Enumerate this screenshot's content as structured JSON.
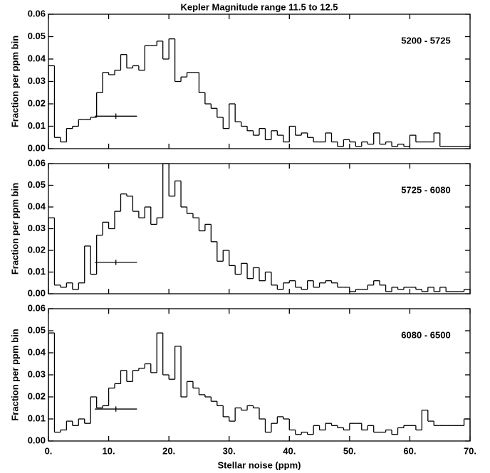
{
  "chart_data": [
    {
      "type": "histogram",
      "title": "Kepler Magnitude range 11.5 to 12.5",
      "ylabel": "Fraction per ppm bin",
      "annotation": "5200 - 5725",
      "color": "#000000",
      "bins": [
        0,
        1,
        2,
        3,
        4,
        5,
        6,
        7,
        8,
        9,
        10,
        11,
        12,
        13,
        14,
        15,
        16,
        17,
        18,
        19,
        20,
        21,
        22,
        23,
        24,
        25,
        26,
        27,
        28,
        29,
        30,
        31,
        32,
        33,
        34,
        35,
        36,
        37,
        38,
        39,
        40,
        41,
        42,
        43,
        44,
        45,
        46,
        47,
        48,
        49,
        50,
        51,
        52,
        53,
        54,
        55,
        56,
        57,
        58,
        59,
        60,
        61,
        62,
        63,
        64,
        65,
        66,
        67,
        68,
        69,
        70
      ],
      "values": [
        0.037,
        0.005,
        0.003,
        0.009,
        0.01,
        0.013,
        0.013,
        0.014,
        0.025,
        0.034,
        0.033,
        0.035,
        0.042,
        0.036,
        0.037,
        0.035,
        0.046,
        0.046,
        0.048,
        0.04,
        0.049,
        0.03,
        0.032,
        0.034,
        0.034,
        0.025,
        0.02,
        0.018,
        0.014,
        0.009,
        0.02,
        0.012,
        0.01,
        0.008,
        0.006,
        0.009,
        0.004,
        0.008,
        0.006,
        0.003,
        0.01,
        0.006,
        0.007,
        0.005,
        0.003,
        0.003,
        0.007,
        0.003,
        0.001,
        0.004,
        0.003,
        0.001,
        0.003,
        0.002,
        0.007,
        0.002,
        0.003,
        0.001,
        0.002,
        0.001,
        0.006,
        0.003,
        0.003,
        0.003,
        0.007,
        0.001,
        0.001,
        0.001,
        0.001,
        0.001
      ],
      "error_bar": {
        "x": 11.2,
        "y": 0.0145,
        "xerr": 3.5,
        "yerr": 0.0012
      },
      "xlim": [
        0,
        70
      ],
      "xticks": [
        0,
        10,
        20,
        30,
        40,
        50,
        60,
        70
      ],
      "ylim": [
        0,
        0.06
      ],
      "yticks": [
        {
          "value": 0,
          "label": "0.00"
        },
        {
          "value": 0.01,
          "label": "0.01"
        },
        {
          "value": 0.02,
          "label": "0.02"
        },
        {
          "value": 0.03,
          "label": "0.03"
        },
        {
          "value": 0.04,
          "label": "0.04"
        },
        {
          "value": 0.05,
          "label": "0.05"
        },
        {
          "value": 0.06,
          "label": "0.06"
        }
      ]
    },
    {
      "type": "histogram",
      "ylabel": "Fraction per ppm bin",
      "annotation": "5725 - 6080",
      "color": "#000000",
      "bins": [
        0,
        1,
        2,
        3,
        4,
        5,
        6,
        7,
        8,
        9,
        10,
        11,
        12,
        13,
        14,
        15,
        16,
        17,
        18,
        19,
        20,
        21,
        22,
        23,
        24,
        25,
        26,
        27,
        28,
        29,
        30,
        31,
        32,
        33,
        34,
        35,
        36,
        37,
        38,
        39,
        40,
        41,
        42,
        43,
        44,
        45,
        46,
        47,
        48,
        49,
        50,
        51,
        52,
        53,
        54,
        55,
        56,
        57,
        58,
        59,
        60,
        61,
        62,
        63,
        64,
        65,
        66,
        67,
        68,
        69,
        70
      ],
      "values": [
        0.035,
        0.004,
        0.003,
        0.005,
        0.002,
        0.005,
        0.022,
        0.009,
        0.027,
        0.033,
        0.03,
        0.038,
        0.046,
        0.045,
        0.038,
        0.035,
        0.04,
        0.032,
        0.035,
        0.06,
        0.045,
        0.052,
        0.04,
        0.037,
        0.035,
        0.029,
        0.032,
        0.024,
        0.015,
        0.02,
        0.013,
        0.009,
        0.014,
        0.007,
        0.012,
        0.006,
        0.01,
        0.004,
        0.002,
        0.005,
        0.006,
        0.003,
        0.002,
        0.006,
        0.003,
        0.005,
        0.006,
        0.005,
        0.003,
        0.003,
        0.001,
        0.002,
        0.002,
        0.004,
        0.006,
        0.004,
        0.001,
        0.003,
        0.002,
        0.003,
        0.003,
        0.002,
        0.001,
        0.003,
        0.001,
        0.003,
        0.001,
        0.001,
        0.001,
        0.002
      ],
      "error_bar": {
        "x": 11.2,
        "y": 0.0145,
        "xerr": 3.5,
        "yerr": 0.0012
      },
      "xlim": [
        0,
        70
      ],
      "xticks": [
        0,
        10,
        20,
        30,
        40,
        50,
        60,
        70
      ],
      "ylim": [
        0,
        0.06
      ],
      "yticks": [
        {
          "value": 0,
          "label": "0.00"
        },
        {
          "value": 0.01,
          "label": "0.01"
        },
        {
          "value": 0.02,
          "label": "0.02"
        },
        {
          "value": 0.03,
          "label": "0.03"
        },
        {
          "value": 0.04,
          "label": "0.04"
        },
        {
          "value": 0.05,
          "label": "0.05"
        },
        {
          "value": 0.06,
          "label": "0.06"
        }
      ]
    },
    {
      "type": "histogram",
      "ylabel": "Fraction per ppm bin",
      "xlabel": "Stellar noise (ppm)",
      "annotation": "6080 - 6500",
      "color": "#000000",
      "bins": [
        0,
        1,
        2,
        3,
        4,
        5,
        6,
        7,
        8,
        9,
        10,
        11,
        12,
        13,
        14,
        15,
        16,
        17,
        18,
        19,
        20,
        21,
        22,
        23,
        24,
        25,
        26,
        27,
        28,
        29,
        30,
        31,
        32,
        33,
        34,
        35,
        36,
        37,
        38,
        39,
        40,
        41,
        42,
        43,
        44,
        45,
        46,
        47,
        48,
        49,
        50,
        51,
        52,
        53,
        54,
        55,
        56,
        57,
        58,
        59,
        60,
        61,
        62,
        63,
        64,
        65,
        66,
        67,
        68,
        69,
        70
      ],
      "values": [
        0.049,
        0.004,
        0.005,
        0.009,
        0.007,
        0.01,
        0.008,
        0.02,
        0.015,
        0.016,
        0.024,
        0.026,
        0.032,
        0.027,
        0.032,
        0.033,
        0.035,
        0.031,
        0.049,
        0.03,
        0.028,
        0.043,
        0.02,
        0.027,
        0.024,
        0.021,
        0.02,
        0.018,
        0.016,
        0.011,
        0.009,
        0.015,
        0.014,
        0.016,
        0.015,
        0.01,
        0.004,
        0.008,
        0.011,
        0.01,
        0.005,
        0.003,
        0.004,
        0.003,
        0.007,
        0.005,
        0.008,
        0.007,
        0.006,
        0.005,
        0.008,
        0.008,
        0.005,
        0.007,
        0.004,
        0.004,
        0.005,
        0.003,
        0.006,
        0.007,
        0.007,
        0.005,
        0.014,
        0.009,
        0.007,
        0.007,
        0.007,
        0.007,
        0.007,
        0.01
      ],
      "error_bar": {
        "x": 11.2,
        "y": 0.0145,
        "xerr": 3.5,
        "yerr": 0.0012
      },
      "xlim": [
        0,
        70
      ],
      "xticks": [
        {
          "value": 0,
          "label": "0."
        },
        {
          "value": 10,
          "label": "10."
        },
        {
          "value": 20,
          "label": "20."
        },
        {
          "value": 30,
          "label": "30."
        },
        {
          "value": 40,
          "label": "40."
        },
        {
          "value": 50,
          "label": "50."
        },
        {
          "value": 60,
          "label": "60."
        },
        {
          "value": 70,
          "label": "70."
        }
      ],
      "ylim": [
        0,
        0.06
      ],
      "yticks": [
        {
          "value": 0,
          "label": "0.00"
        },
        {
          "value": 0.01,
          "label": "0.01"
        },
        {
          "value": 0.02,
          "label": "0.02"
        },
        {
          "value": 0.03,
          "label": "0.03"
        },
        {
          "value": 0.04,
          "label": "0.04"
        },
        {
          "value": 0.05,
          "label": "0.05"
        },
        {
          "value": 0.06,
          "label": "0.06"
        }
      ]
    }
  ]
}
